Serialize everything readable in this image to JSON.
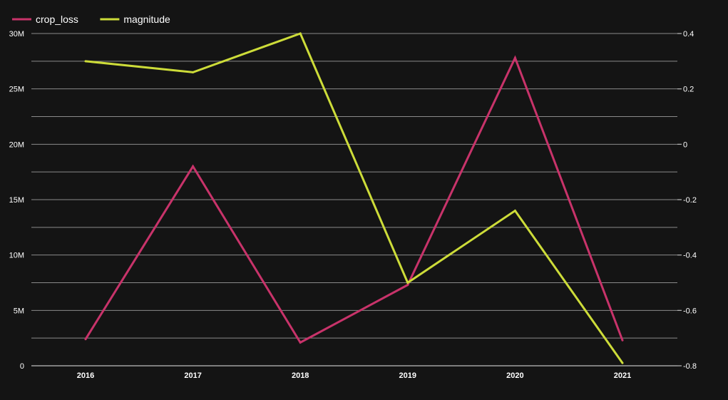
{
  "chart_data": {
    "type": "line",
    "title": "",
    "xlabel": "",
    "ylabel": "",
    "categories": [
      "2016",
      "2017",
      "2018",
      "2019",
      "2020",
      "2021"
    ],
    "series": [
      {
        "name": "crop_loss",
        "axis": "left",
        "color": "#c8336a",
        "values": [
          2400000,
          18000000,
          2100000,
          7300000,
          27800000,
          2300000
        ]
      },
      {
        "name": "magnitude",
        "axis": "right",
        "color": "#cddc39",
        "values": [
          0.3,
          0.26,
          0.4,
          -0.5,
          -0.24,
          -0.79
        ]
      }
    ],
    "y_left": {
      "ylim": [
        0,
        30000000
      ],
      "ticks": [
        {
          "value": 0,
          "label": "0"
        },
        {
          "value": 5000000,
          "label": "5M"
        },
        {
          "value": 10000000,
          "label": "10M"
        },
        {
          "value": 15000000,
          "label": "15M"
        },
        {
          "value": 20000000,
          "label": "20M"
        },
        {
          "value": 25000000,
          "label": "25M"
        },
        {
          "value": 30000000,
          "label": "30M"
        }
      ]
    },
    "y_right": {
      "ylim": [
        -0.8,
        0.4
      ],
      "ticks": [
        {
          "value": 0.4,
          "label": "0.4"
        },
        {
          "value": 0.2,
          "label": "0.2"
        },
        {
          "value": 0,
          "label": "0"
        },
        {
          "value": -0.2,
          "label": "-0.2"
        },
        {
          "value": -0.4,
          "label": "-0.4"
        },
        {
          "value": -0.6,
          "label": "-0.6"
        },
        {
          "value": -0.8,
          "label": "-0.8"
        }
      ]
    },
    "grid": true,
    "legend": "top-left"
  }
}
